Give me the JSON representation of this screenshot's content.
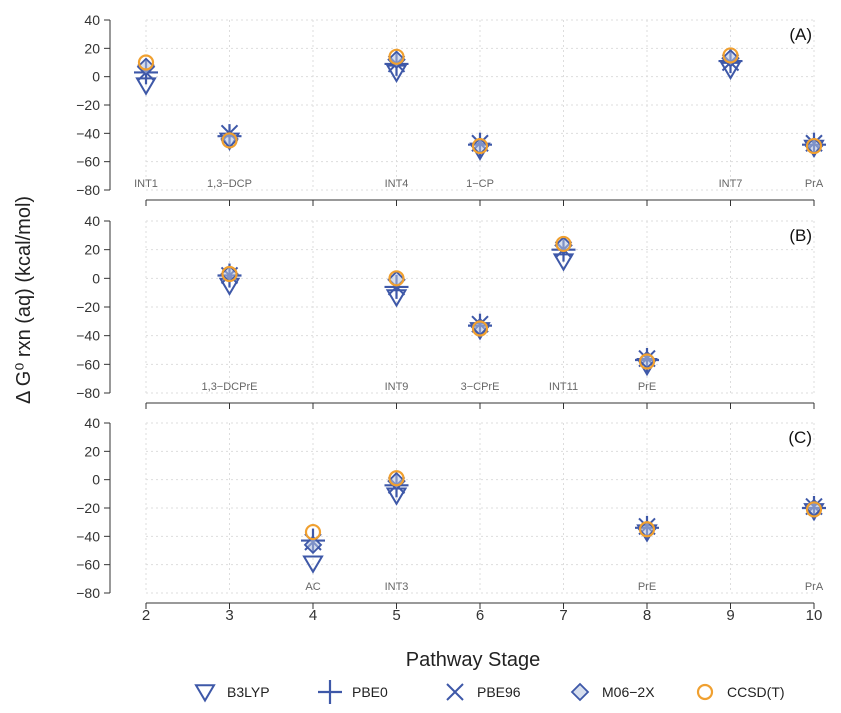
{
  "chart_data": {
    "type": "scatter",
    "ylabel": "Δ G⁰ rxn (aq) (kcal/mol)",
    "xlabel": "Pathway Stage",
    "xlim": [
      2,
      10
    ],
    "x_ticks": [
      2,
      3,
      4,
      5,
      6,
      7,
      8,
      9,
      10
    ],
    "ylim": [
      -80,
      40
    ],
    "y_ticks": [
      40,
      20,
      0,
      -20,
      -40,
      -60,
      -80
    ],
    "grid": true,
    "legend_position": "bottom",
    "colors": {
      "dft": "#3e58a8",
      "ccsd": "#f0a030",
      "diamond_fill": "#b4c3e0",
      "grid": "#dddddd"
    },
    "legend": [
      {
        "name": "B3LYP",
        "marker": "triangle-down"
      },
      {
        "name": "PBE0",
        "marker": "plus"
      },
      {
        "name": "PBE96",
        "marker": "cross"
      },
      {
        "name": "M06−2X",
        "marker": "diamond"
      },
      {
        "name": "CCSD(T)",
        "marker": "circle"
      }
    ],
    "panels": [
      {
        "label": "(A)",
        "annotations": [
          {
            "x": 2,
            "text": "INT1"
          },
          {
            "x": 3,
            "text": "1,3−DCP"
          },
          {
            "x": 5,
            "text": "INT4"
          },
          {
            "x": 6,
            "text": "1−CP"
          },
          {
            "x": 9,
            "text": "INT7"
          },
          {
            "x": 10,
            "text": "PrA"
          }
        ],
        "series": [
          {
            "name": "B3LYP",
            "x": [
              2,
              3,
              5,
              6,
              9,
              10
            ],
            "y": [
              -6,
              -45,
              3,
              -52,
              5,
              -50
            ]
          },
          {
            "name": "PBE0",
            "x": [
              2,
              3,
              5,
              6,
              9,
              10
            ],
            "y": [
              3,
              -42,
              9,
              -48,
              11,
              -48
            ]
          },
          {
            "name": "PBE96",
            "x": [
              2,
              3,
              5,
              6,
              9,
              10
            ],
            "y": [
              3,
              -40,
              9,
              -47,
              10,
              -47
            ]
          },
          {
            "name": "M06−2X",
            "x": [
              2,
              3,
              5,
              6,
              9,
              10
            ],
            "y": [
              7,
              -44,
              12,
              -49,
              13,
              -49
            ]
          },
          {
            "name": "CCSD(T)",
            "x": [
              2,
              3,
              5,
              6,
              9,
              10
            ],
            "y": [
              10,
              -45,
              14,
              -49,
              15,
              -49
            ]
          }
        ]
      },
      {
        "label": "(B)",
        "annotations": [
          {
            "x": 3,
            "text": "1,3−DCPrE"
          },
          {
            "x": 5,
            "text": "INT9"
          },
          {
            "x": 6,
            "text": "3−CPrE"
          },
          {
            "x": 7,
            "text": "INT11"
          },
          {
            "x": 8,
            "text": "PrE"
          }
        ],
        "series": [
          {
            "name": "B3LYP",
            "x": [
              3,
              5,
              6,
              7,
              8
            ],
            "y": [
              -5,
              -13,
              -36,
              12,
              -61
            ]
          },
          {
            "name": "PBE0",
            "x": [
              3,
              5,
              6,
              7,
              8
            ],
            "y": [
              2,
              -6,
              -33,
              20,
              -57
            ]
          },
          {
            "name": "PBE96",
            "x": [
              3,
              5,
              6,
              7,
              8
            ],
            "y": [
              2,
              -6,
              -32,
              20,
              -56
            ]
          },
          {
            "name": "M06−2X",
            "x": [
              3,
              5,
              6,
              7,
              8
            ],
            "y": [
              3,
              -1,
              -34,
              23,
              -57
            ]
          },
          {
            "name": "CCSD(T)",
            "x": [
              3,
              5,
              6,
              7,
              8
            ],
            "y": [
              3,
              0,
              -35,
              24,
              -58
            ]
          }
        ]
      },
      {
        "label": "(C)",
        "annotations": [
          {
            "x": 4,
            "text": "AC"
          },
          {
            "x": 5,
            "text": "INT3"
          },
          {
            "x": 8,
            "text": "PrE"
          },
          {
            "x": 10,
            "text": "PrA"
          }
        ],
        "series": [
          {
            "name": "B3LYP",
            "x": [
              4,
              5,
              8,
              10
            ],
            "y": [
              -59,
              -11,
              -37,
              -22
            ]
          },
          {
            "name": "PBE0",
            "x": [
              4,
              5,
              8,
              10
            ],
            "y": [
              -43,
              -4,
              -34,
              -20
            ]
          },
          {
            "name": "PBE96",
            "x": [
              4,
              5,
              8,
              10
            ],
            "y": [
              -44,
              -4,
              -33,
              -19
            ]
          },
          {
            "name": "M06−2X",
            "x": [
              4,
              5,
              8,
              10
            ],
            "y": [
              -46,
              -1,
              -35,
              -20
            ]
          },
          {
            "name": "CCSD(T)",
            "x": [
              4,
              5,
              8,
              10
            ],
            "y": [
              -37,
              1,
              -35,
              -21
            ]
          }
        ]
      }
    ]
  }
}
